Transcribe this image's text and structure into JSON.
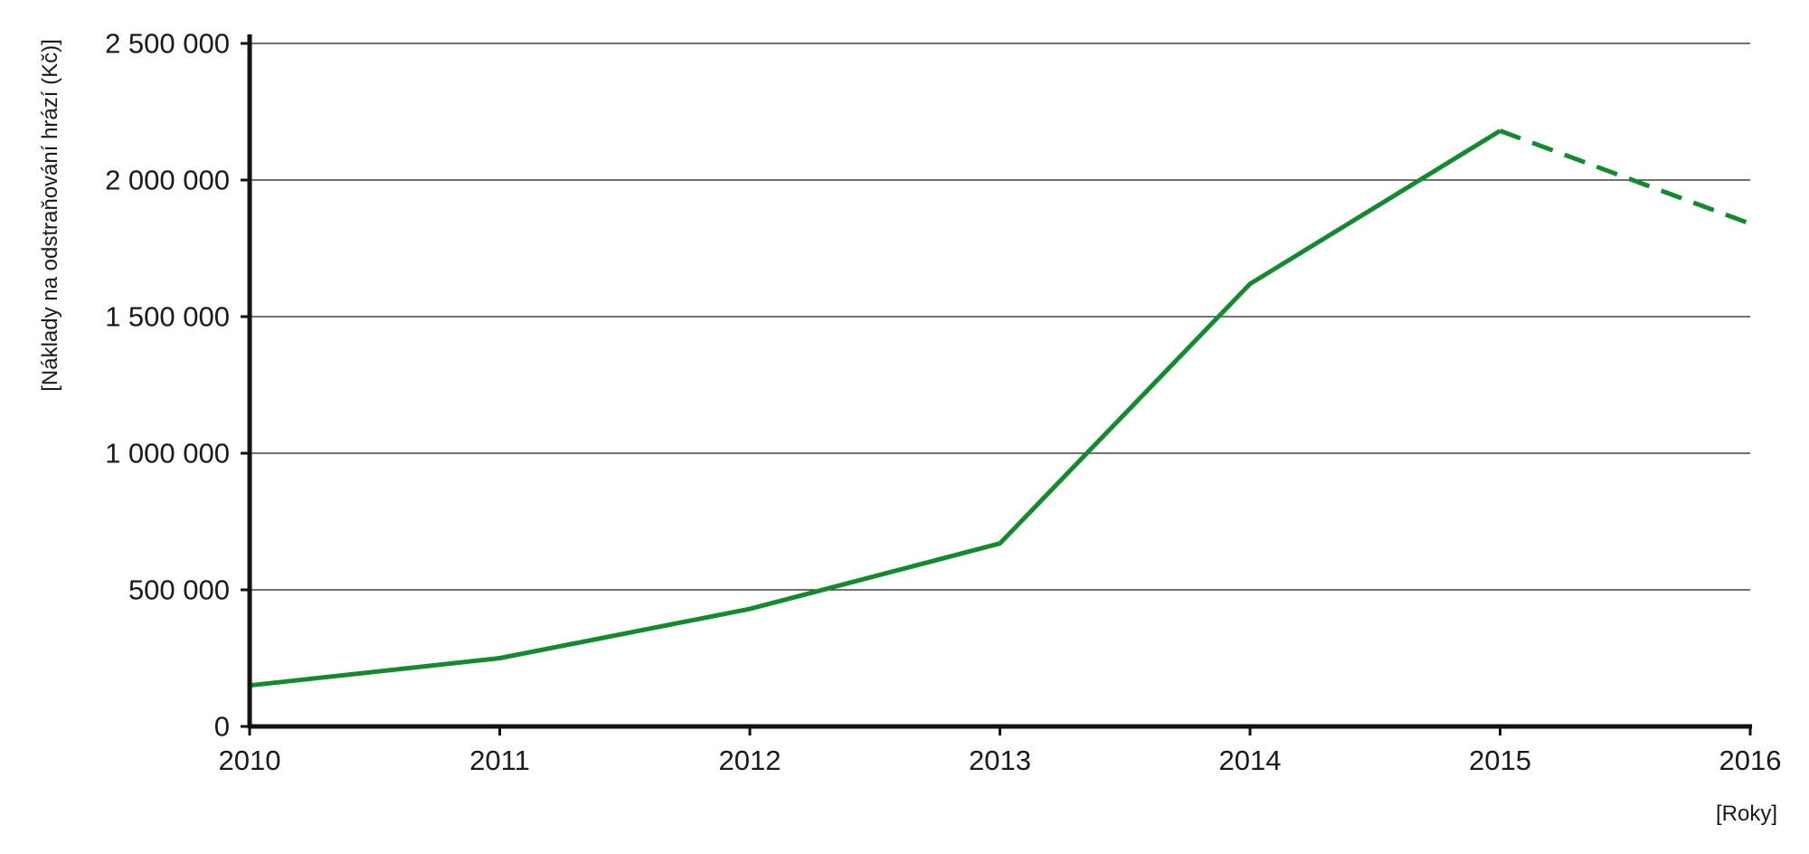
{
  "chart_data": {
    "type": "line",
    "title": "",
    "xlabel": "[Roky]",
    "ylabel": "[Náklady na odstraňování hrází (Kč)]",
    "x": [
      2010,
      2011,
      2012,
      2013,
      2014,
      2015,
      2016
    ],
    "x_tick_labels": [
      "2010",
      "2011",
      "2012",
      "2013",
      "2014",
      "2015",
      "2016"
    ],
    "y_ticks": [
      0,
      500000,
      1000000,
      1500000,
      2000000,
      2500000
    ],
    "y_tick_labels": [
      "0",
      "500 000",
      "1 000 000",
      "1 500 000",
      "2 000 000",
      "2 500 000"
    ],
    "ylim": [
      0,
      2500000
    ],
    "xlim": [
      2010,
      2016
    ],
    "grid": "horizontal",
    "legend": "none",
    "series": [
      {
        "style": "solid",
        "color": "#138a2e",
        "points": [
          {
            "x": 2010,
            "y": 150000
          },
          {
            "x": 2011,
            "y": 250000
          },
          {
            "x": 2012,
            "y": 430000
          },
          {
            "x": 2013,
            "y": 670000
          },
          {
            "x": 2014,
            "y": 1620000
          },
          {
            "x": 2015,
            "y": 2180000
          }
        ]
      },
      {
        "style": "dashed",
        "color": "#138a2e",
        "points": [
          {
            "x": 2015,
            "y": 2180000
          },
          {
            "x": 2016,
            "y": 1840000
          }
        ]
      }
    ]
  }
}
